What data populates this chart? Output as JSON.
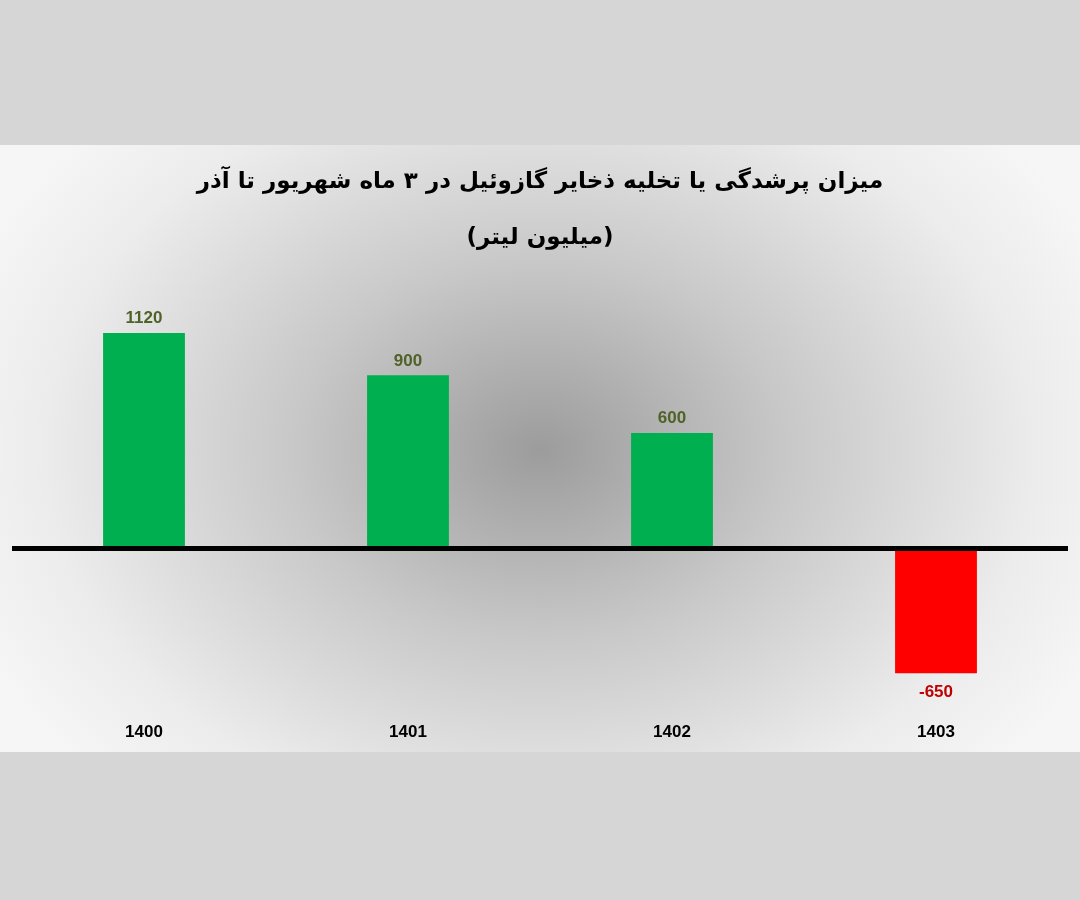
{
  "chart_data": {
    "type": "bar",
    "title": "میزان پرشدگی یا تخلیه ذخایر گازوئیل در ۳ ماه شهریور تا آذر",
    "subtitle": "(میلیون لیتر)",
    "categories": [
      "1400",
      "1401",
      "1402",
      "1403"
    ],
    "values": [
      1120,
      900,
      600,
      -650
    ],
    "colors": [
      "#00b050",
      "#00b050",
      "#00b050",
      "#ff0000"
    ],
    "data_labels": true,
    "tick_labels": "x"
  }
}
